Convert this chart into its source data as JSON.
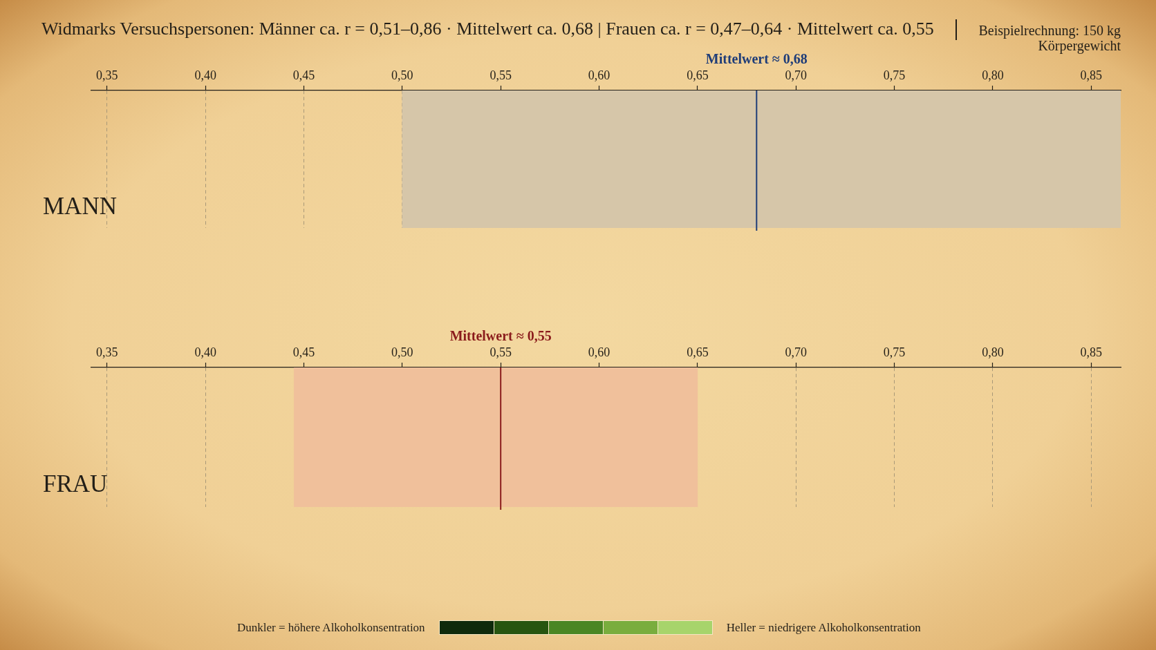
{
  "chart_data": [
    {
      "type": "bar",
      "title": "Widmarks Versuchspersonen: Männer ca. r = 0,51–0,86 · Mittelwert ca. 0,68 | Frauen ca. r = 0,47–0,64 · Mittelwert ca. 0,55",
      "subtitle": "Beispielrechnung: 150 kg Körpergewicht",
      "orientation": "horizontal",
      "categories": [
        "MANN"
      ],
      "values": [
        0.365
      ],
      "base": [
        0.5
      ],
      "color": "#d6c6a9",
      "xlim": [
        0.342,
        0.865
      ],
      "xticks": [
        {
          "value": 0.35,
          "label": "0,35"
        },
        {
          "value": 0.4,
          "label": "0,40"
        },
        {
          "value": 0.45,
          "label": "0,45"
        },
        {
          "value": 0.5,
          "label": "0,50"
        },
        {
          "value": 0.55,
          "label": "0,55"
        },
        {
          "value": 0.6,
          "label": "0,60"
        },
        {
          "value": 0.65,
          "label": "0,65"
        },
        {
          "value": 0.7,
          "label": "0,70"
        },
        {
          "value": 0.75,
          "label": "0,75"
        },
        {
          "value": 0.8,
          "label": "0,80"
        },
        {
          "value": 0.85,
          "label": "0,85"
        }
      ],
      "grid": "x",
      "ref_lines": [
        {
          "axis": "x",
          "value": 0.68,
          "label": "Mittelwert ≈ 0,68",
          "color": "#1f3d78"
        }
      ]
    },
    {
      "type": "bar",
      "orientation": "horizontal",
      "categories": [
        "FRAU"
      ],
      "values": [
        0.205
      ],
      "base": [
        0.445
      ],
      "color": "#f0c09b",
      "xlim": [
        0.342,
        0.865
      ],
      "xticks": [
        {
          "value": 0.35,
          "label": "0,35"
        },
        {
          "value": 0.4,
          "label": "0,40"
        },
        {
          "value": 0.45,
          "label": "0,45"
        },
        {
          "value": 0.5,
          "label": "0,50"
        },
        {
          "value": 0.55,
          "label": "0,55"
        },
        {
          "value": 0.6,
          "label": "0,60"
        },
        {
          "value": 0.65,
          "label": "0,65"
        },
        {
          "value": 0.7,
          "label": "0,70"
        },
        {
          "value": 0.75,
          "label": "0,75"
        },
        {
          "value": 0.8,
          "label": "0,80"
        },
        {
          "value": 0.85,
          "label": "0,85"
        }
      ],
      "grid": "x",
      "ref_lines": [
        {
          "axis": "x",
          "value": 0.55,
          "label": "Mittelwert ≈ 0,55",
          "color": "#8b1c1c"
        }
      ],
      "annotations": [
        "Dunkler = höhere Alkoholkonsentration",
        "Heller = niedrigere Alkoholkonsentration"
      ]
    }
  ]
}
